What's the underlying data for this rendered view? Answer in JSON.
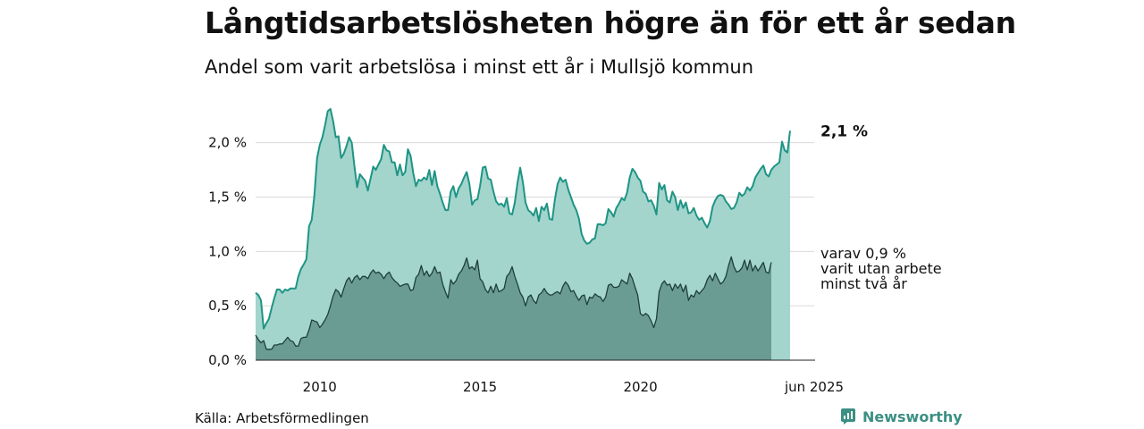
{
  "title": "Långtidsarbetslösheten högre än för ett år sedan",
  "subtitle": "Andel som varit arbetslösa i minst ett år i Mullsjö kommun",
  "source": "Källa: Arbetsförmedlingen",
  "brand": {
    "name": "Newsworthy",
    "icon": "newsworthy-logo-icon",
    "color": "#3c8f83"
  },
  "chart_data": {
    "type": "area",
    "x_start": 2008.0,
    "x_step": 0.0833333,
    "x_range": [
      2008.0,
      2025.42
    ],
    "ylim": [
      0,
      2.4
    ],
    "y_ticks": [
      {
        "value": 0.0,
        "label": "0,0 %"
      },
      {
        "value": 0.5,
        "label": "0,5 %"
      },
      {
        "value": 1.0,
        "label": "1,0 %"
      },
      {
        "value": 1.5,
        "label": "1,5 %"
      },
      {
        "value": 2.0,
        "label": "2,0 %"
      }
    ],
    "x_ticks": [
      {
        "value": 2010,
        "label": "2010"
      },
      {
        "value": 2015,
        "label": "2015"
      },
      {
        "value": 2020,
        "label": "2020"
      },
      {
        "value": 2025.42,
        "label": "jun 2025"
      }
    ],
    "grid": true,
    "series": [
      {
        "key": "total",
        "color": "#1f9484",
        "fill": "#a3d5cd",
        "end_label": "2,1 %",
        "values": [
          0.62,
          0.6,
          0.55,
          0.29,
          0.34,
          0.38,
          0.48,
          0.57,
          0.65,
          0.65,
          0.62,
          0.65,
          0.64,
          0.66,
          0.66,
          0.66,
          0.77,
          0.84,
          0.88,
          0.93,
          1.23,
          1.29,
          1.52,
          1.86,
          1.98,
          2.05,
          2.16,
          2.29,
          2.31,
          2.2,
          2.05,
          2.06,
          1.86,
          1.9,
          1.97,
          2.05,
          2.0,
          1.78,
          1.59,
          1.71,
          1.68,
          1.65,
          1.56,
          1.67,
          1.78,
          1.75,
          1.8,
          1.85,
          1.98,
          1.93,
          1.92,
          1.82,
          1.82,
          1.7,
          1.8,
          1.7,
          1.73,
          1.94,
          1.88,
          1.72,
          1.6,
          1.66,
          1.65,
          1.68,
          1.66,
          1.75,
          1.61,
          1.74,
          1.6,
          1.53,
          1.45,
          1.38,
          1.38,
          1.55,
          1.6,
          1.5,
          1.58,
          1.62,
          1.68,
          1.73,
          1.62,
          1.43,
          1.47,
          1.48,
          1.6,
          1.77,
          1.78,
          1.67,
          1.66,
          1.55,
          1.46,
          1.43,
          1.44,
          1.41,
          1.49,
          1.35,
          1.34,
          1.45,
          1.63,
          1.77,
          1.64,
          1.45,
          1.38,
          1.36,
          1.33,
          1.4,
          1.28,
          1.41,
          1.38,
          1.44,
          1.3,
          1.29,
          1.48,
          1.62,
          1.68,
          1.64,
          1.66,
          1.57,
          1.5,
          1.43,
          1.38,
          1.3,
          1.16,
          1.1,
          1.07,
          1.08,
          1.11,
          1.12,
          1.25,
          1.25,
          1.24,
          1.26,
          1.39,
          1.36,
          1.32,
          1.4,
          1.44,
          1.49,
          1.47,
          1.54,
          1.68,
          1.76,
          1.73,
          1.68,
          1.65,
          1.55,
          1.53,
          1.46,
          1.47,
          1.42,
          1.34,
          1.63,
          1.57,
          1.61,
          1.47,
          1.45,
          1.55,
          1.5,
          1.38,
          1.47,
          1.4,
          1.45,
          1.35,
          1.36,
          1.4,
          1.33,
          1.29,
          1.31,
          1.26,
          1.22,
          1.28,
          1.41,
          1.47,
          1.51,
          1.52,
          1.51,
          1.46,
          1.43,
          1.39,
          1.4,
          1.45,
          1.54,
          1.51,
          1.53,
          1.59,
          1.56,
          1.6,
          1.68,
          1.72,
          1.76,
          1.79,
          1.71,
          1.69,
          1.75,
          1.78,
          1.8,
          1.82,
          2.01,
          1.93,
          1.91,
          2.11
        ]
      },
      {
        "key": "two_year",
        "color": "#1e3f3a",
        "fill": "#6b9c94",
        "annotation": [
          "varav 0,9 %",
          "varit utan arbete",
          "minst två år"
        ],
        "values": [
          0.23,
          0.19,
          0.16,
          0.18,
          0.1,
          0.1,
          0.1,
          0.14,
          0.14,
          0.15,
          0.15,
          0.18,
          0.21,
          0.18,
          0.17,
          0.13,
          0.13,
          0.2,
          0.21,
          0.21,
          0.28,
          0.37,
          0.36,
          0.35,
          0.3,
          0.33,
          0.37,
          0.42,
          0.5,
          0.59,
          0.65,
          0.63,
          0.58,
          0.66,
          0.73,
          0.76,
          0.71,
          0.76,
          0.78,
          0.74,
          0.77,
          0.77,
          0.75,
          0.8,
          0.83,
          0.8,
          0.81,
          0.79,
          0.75,
          0.79,
          0.81,
          0.76,
          0.73,
          0.71,
          0.68,
          0.69,
          0.7,
          0.7,
          0.64,
          0.65,
          0.76,
          0.79,
          0.87,
          0.78,
          0.82,
          0.77,
          0.8,
          0.86,
          0.8,
          0.81,
          0.7,
          0.63,
          0.57,
          0.74,
          0.7,
          0.73,
          0.79,
          0.82,
          0.87,
          0.94,
          0.84,
          0.86,
          0.83,
          0.92,
          0.75,
          0.72,
          0.65,
          0.62,
          0.68,
          0.62,
          0.7,
          0.63,
          0.64,
          0.66,
          0.77,
          0.8,
          0.86,
          0.77,
          0.7,
          0.62,
          0.58,
          0.5,
          0.58,
          0.6,
          0.55,
          0.52,
          0.6,
          0.62,
          0.66,
          0.62,
          0.6,
          0.6,
          0.62,
          0.63,
          0.61,
          0.68,
          0.72,
          0.69,
          0.63,
          0.64,
          0.59,
          0.55,
          0.59,
          0.6,
          0.51,
          0.58,
          0.57,
          0.61,
          0.59,
          0.58,
          0.54,
          0.58,
          0.69,
          0.7,
          0.67,
          0.67,
          0.68,
          0.74,
          0.72,
          0.7,
          0.8,
          0.75,
          0.67,
          0.6,
          0.43,
          0.41,
          0.43,
          0.41,
          0.36,
          0.3,
          0.38,
          0.63,
          0.7,
          0.73,
          0.69,
          0.7,
          0.64,
          0.7,
          0.66,
          0.7,
          0.63,
          0.69,
          0.55,
          0.6,
          0.58,
          0.64,
          0.61,
          0.64,
          0.67,
          0.74,
          0.78,
          0.73,
          0.8,
          0.75,
          0.7,
          0.72,
          0.77,
          0.87,
          0.95,
          0.86,
          0.81,
          0.82,
          0.85,
          0.92,
          0.83,
          0.92,
          0.82,
          0.87,
          0.82,
          0.86,
          0.9,
          0.81,
          0.8,
          0.9
        ]
      }
    ]
  }
}
